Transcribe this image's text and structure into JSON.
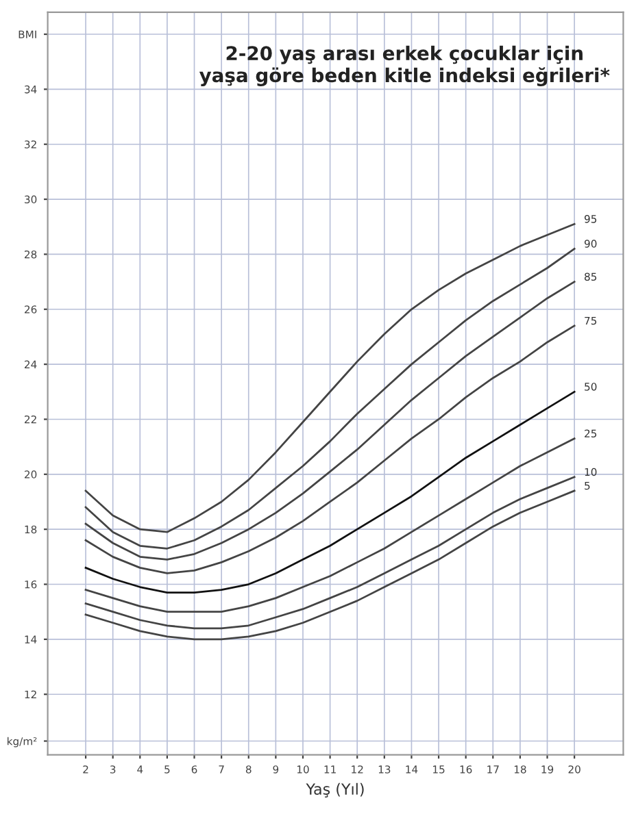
{
  "chart_data": {
    "type": "line",
    "title": "2-20 yaş arası erkek çocuklar için\nyaşa göre beden kitle indeksi eğrileri*",
    "xlabel": "Yaş (Yıl)",
    "x": [
      2,
      3,
      4,
      5,
      6,
      7,
      8,
      9,
      10,
      11,
      12,
      13,
      14,
      15,
      16,
      17,
      18,
      19,
      20
    ],
    "series": [
      {
        "name": "95",
        "color": "#444444",
        "values": [
          19.4,
          18.5,
          18.0,
          17.9,
          18.4,
          19.0,
          19.8,
          20.8,
          21.9,
          23.0,
          24.1,
          25.1,
          26.0,
          26.7,
          27.3,
          27.8,
          28.3,
          28.7,
          29.1
        ]
      },
      {
        "name": "90",
        "color": "#444444",
        "values": [
          18.8,
          17.9,
          17.4,
          17.3,
          17.6,
          18.1,
          18.7,
          19.5,
          20.3,
          21.2,
          22.2,
          23.1,
          24.0,
          24.8,
          25.6,
          26.3,
          26.9,
          27.5,
          28.2
        ]
      },
      {
        "name": "85",
        "color": "#444444",
        "values": [
          18.2,
          17.5,
          17.0,
          16.9,
          17.1,
          17.5,
          18.0,
          18.6,
          19.3,
          20.1,
          20.9,
          21.8,
          22.7,
          23.5,
          24.3,
          25.0,
          25.7,
          26.4,
          27.0
        ]
      },
      {
        "name": "75",
        "color": "#444444",
        "values": [
          17.6,
          17.0,
          16.6,
          16.4,
          16.5,
          16.8,
          17.2,
          17.7,
          18.3,
          19.0,
          19.7,
          20.5,
          21.3,
          22.0,
          22.8,
          23.5,
          24.1,
          24.8,
          25.4
        ]
      },
      {
        "name": "50",
        "color": "#111111",
        "values": [
          16.6,
          16.2,
          15.9,
          15.7,
          15.7,
          15.8,
          16.0,
          16.4,
          16.9,
          17.4,
          18.0,
          18.6,
          19.2,
          19.9,
          20.6,
          21.2,
          21.8,
          22.4,
          23.0
        ]
      },
      {
        "name": "25",
        "color": "#444444",
        "values": [
          15.8,
          15.5,
          15.2,
          15.0,
          15.0,
          15.0,
          15.2,
          15.5,
          15.9,
          16.3,
          16.8,
          17.3,
          17.9,
          18.5,
          19.1,
          19.7,
          20.3,
          20.8,
          21.3
        ]
      },
      {
        "name": "10",
        "color": "#444444",
        "values": [
          15.3,
          15.0,
          14.7,
          14.5,
          14.4,
          14.4,
          14.5,
          14.8,
          15.1,
          15.5,
          15.9,
          16.4,
          16.9,
          17.4,
          18.0,
          18.6,
          19.1,
          19.5,
          19.9
        ]
      },
      {
        "name": "5",
        "color": "#444444",
        "values": [
          14.9,
          14.6,
          14.3,
          14.1,
          14.0,
          14.0,
          14.1,
          14.3,
          14.6,
          15.0,
          15.4,
          15.9,
          16.4,
          16.9,
          17.5,
          18.1,
          18.6,
          19.0,
          19.4
        ]
      }
    ],
    "xlim": [
      0.6,
      21.8
    ],
    "ylim": [
      9.8,
      36.8
    ],
    "xticks": [
      2,
      3,
      4,
      5,
      6,
      7,
      8,
      9,
      10,
      11,
      12,
      13,
      14,
      15,
      16,
      17,
      18,
      19,
      20
    ],
    "yticks": [
      {
        "value": 10.3,
        "label": "kg/m²"
      },
      12,
      14,
      16,
      18,
      20,
      22,
      24,
      26,
      28,
      30,
      32,
      34,
      {
        "value": 36,
        "label": "BMI"
      }
    ],
    "grid": true,
    "line_style": "solid",
    "marker": "none",
    "legend": false
  }
}
